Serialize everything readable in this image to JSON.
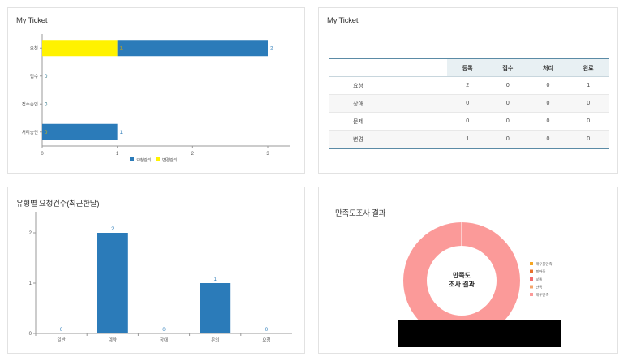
{
  "panels": {
    "p1_title": "My Ticket",
    "p2_title": "My Ticket",
    "p3_title": "유형별 요청건수(최근한달)",
    "p4_title": "만족도조사 결과"
  },
  "chart_data": [
    {
      "type": "bar",
      "orientation": "horizontal",
      "stacked": true,
      "categories": [
        "요청",
        "접수",
        "접수승인",
        "처리승인"
      ],
      "series": [
        {
          "name": "요청관리",
          "color": "#2b7bb9",
          "values": [
            2,
            0,
            0,
            1
          ]
        },
        {
          "name": "변경관리",
          "color": "#fff200",
          "values": [
            1,
            0,
            0,
            0
          ]
        }
      ],
      "xlim": [
        0,
        3
      ],
      "xticks": [
        0,
        1,
        2,
        3
      ],
      "legend": "bottom"
    },
    {
      "type": "table",
      "columns": [
        "",
        "등록",
        "접수",
        "처리",
        "완료"
      ],
      "rows": [
        [
          "요청",
          "2",
          "0",
          "0",
          "1"
        ],
        [
          "장애",
          "0",
          "0",
          "0",
          "0"
        ],
        [
          "문제",
          "0",
          "0",
          "0",
          "0"
        ],
        [
          "변경",
          "1",
          "0",
          "0",
          "0"
        ]
      ]
    },
    {
      "type": "bar",
      "categories": [
        "일반",
        "계약",
        "장애",
        "문의",
        "요청"
      ],
      "values": [
        0,
        2,
        0,
        1,
        0
      ],
      "ylim": [
        0,
        2
      ],
      "yticks": [
        0,
        1,
        2
      ],
      "color": "#2b7bb9"
    },
    {
      "type": "pie",
      "donut": true,
      "center_label": [
        "만족도",
        "조사 결과"
      ],
      "slices": [
        {
          "name": "매우불만족",
          "value": 0,
          "color": "#f5a623"
        },
        {
          "name": "불만족",
          "value": 0,
          "color": "#e8702a"
        },
        {
          "name": "보통",
          "value": 0,
          "color": "#f26c6c"
        },
        {
          "name": "만족",
          "value": 0,
          "color": "#f4a46b"
        },
        {
          "name": "매우만족",
          "value": 1,
          "color": "#fb9a99"
        }
      ],
      "legend": "right"
    }
  ]
}
